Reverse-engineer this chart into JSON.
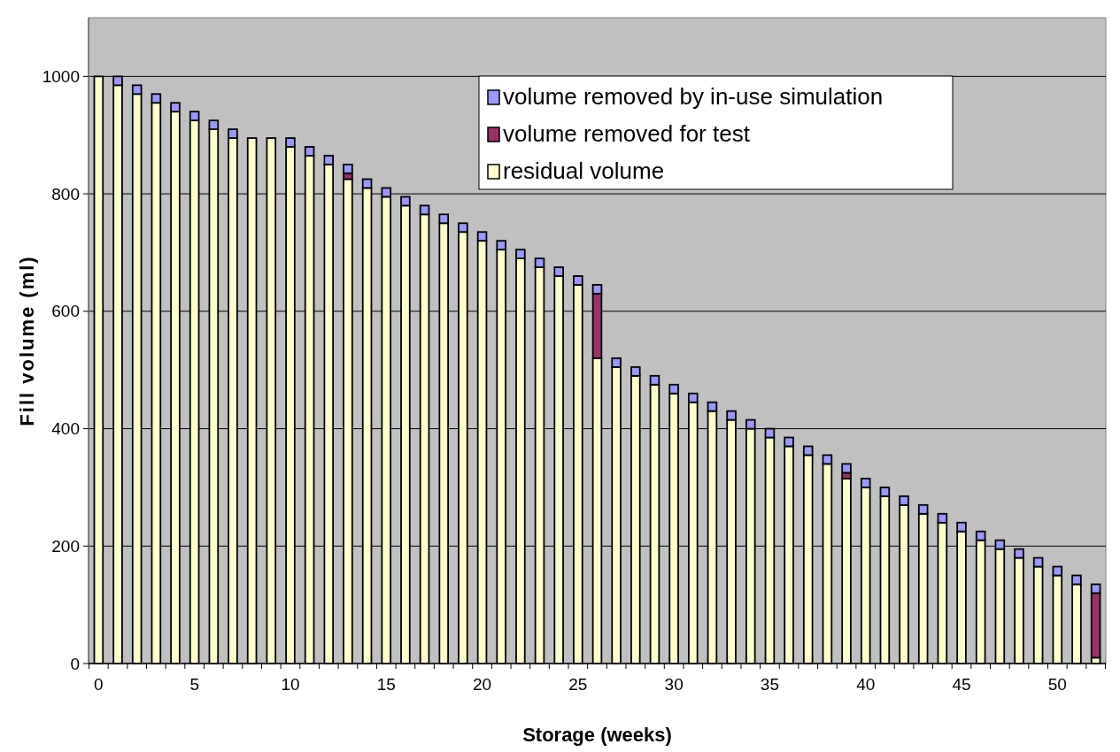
{
  "chart_data": {
    "type": "bar",
    "stacked": true,
    "xlabel": "Storage (weeks)",
    "ylabel": "Fill volume (ml)",
    "categories": [
      "0",
      null,
      null,
      null,
      null,
      "5",
      null,
      null,
      null,
      null,
      "10",
      null,
      null,
      null,
      null,
      "15",
      null,
      null,
      null,
      null,
      "20",
      null,
      null,
      null,
      null,
      "25",
      null,
      null,
      null,
      null,
      "30",
      null,
      null,
      null,
      null,
      "35",
      null,
      null,
      null,
      null,
      "40",
      null,
      null,
      null,
      null,
      "45",
      null,
      null,
      null,
      null,
      "50",
      null,
      null
    ],
    "series": [
      {
        "name": "residual volume",
        "color": "#ffffcc",
        "values": [
          1000,
          985,
          970,
          955,
          940,
          925,
          910,
          895,
          895,
          895,
          880,
          865,
          850,
          825,
          810,
          795,
          780,
          765,
          750,
          735,
          720,
          705,
          690,
          675,
          660,
          645,
          520,
          505,
          490,
          475,
          460,
          445,
          430,
          415,
          400,
          385,
          370,
          355,
          340,
          315,
          300,
          285,
          270,
          255,
          240,
          225,
          210,
          195,
          180,
          165,
          150,
          135,
          10
        ]
      },
      {
        "name": "volume removed for test",
        "color": "#993366",
        "values": [
          null,
          null,
          null,
          null,
          null,
          null,
          null,
          null,
          null,
          null,
          null,
          null,
          null,
          10,
          null,
          null,
          null,
          null,
          null,
          null,
          null,
          null,
          null,
          null,
          null,
          null,
          110,
          null,
          null,
          null,
          null,
          null,
          null,
          null,
          null,
          null,
          null,
          null,
          null,
          10,
          null,
          null,
          null,
          null,
          null,
          null,
          null,
          null,
          null,
          null,
          null,
          null,
          110
        ]
      },
      {
        "name": "volume removed by in-use simulation",
        "color": "#9999ff",
        "values": [
          null,
          15,
          15,
          15,
          15,
          15,
          15,
          15,
          null,
          null,
          15,
          15,
          15,
          15,
          15,
          15,
          15,
          15,
          15,
          15,
          15,
          15,
          15,
          15,
          15,
          15,
          15,
          15,
          15,
          15,
          15,
          15,
          15,
          15,
          15,
          15,
          15,
          15,
          15,
          15,
          15,
          15,
          15,
          15,
          15,
          15,
          15,
          15,
          15,
          15,
          15,
          15,
          15
        ]
      }
    ],
    "ylim": [
      0,
      1100
    ],
    "yticks": [
      0,
      200,
      400,
      600,
      800,
      1000
    ],
    "grid": "y",
    "legend": "top right"
  }
}
